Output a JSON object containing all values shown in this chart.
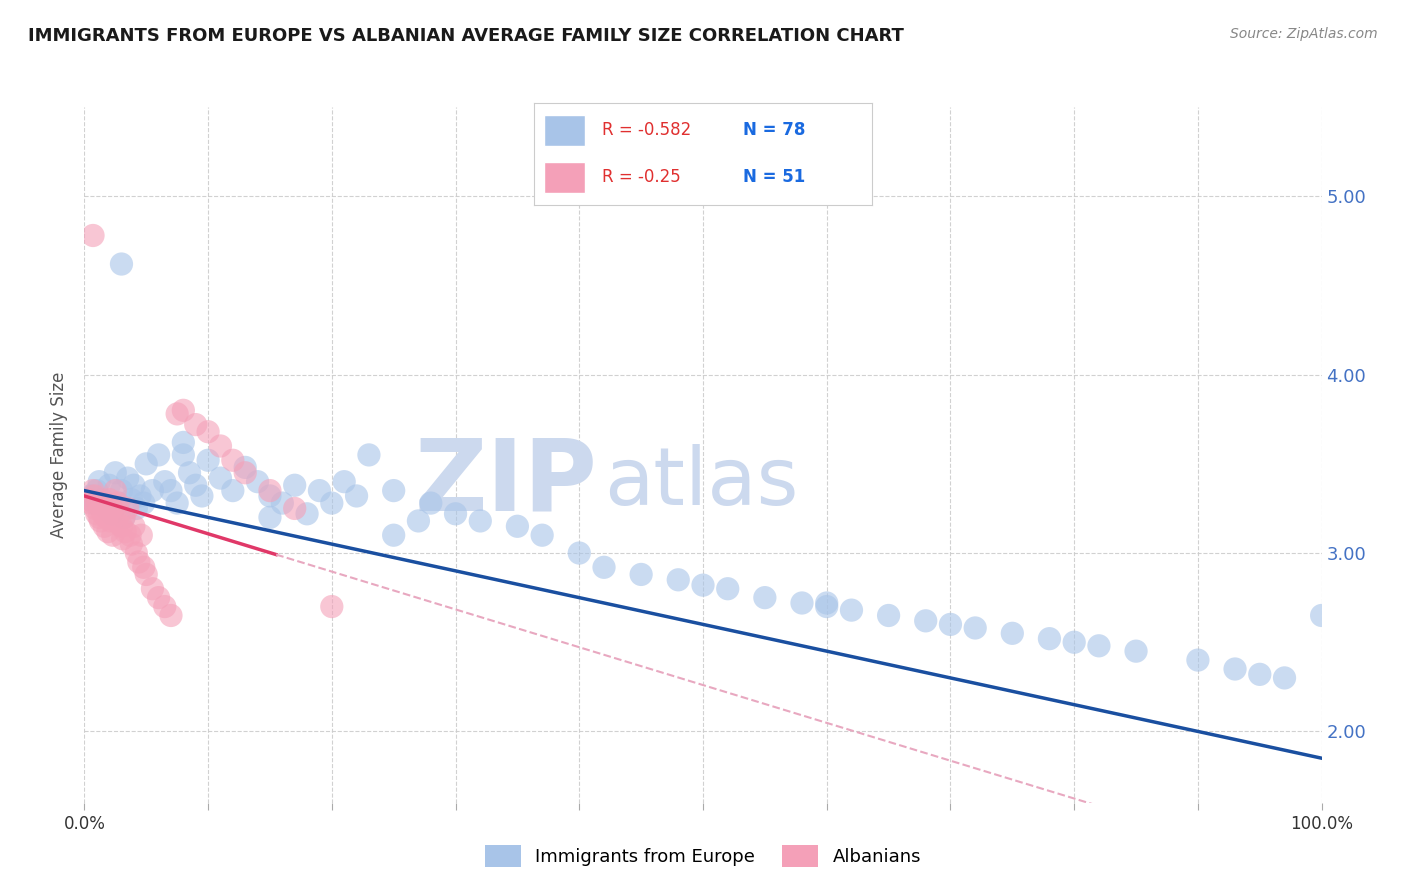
{
  "title": "IMMIGRANTS FROM EUROPE VS ALBANIAN AVERAGE FAMILY SIZE CORRELATION CHART",
  "source": "Source: ZipAtlas.com",
  "ylabel": "Average Family Size",
  "yticks": [
    2.0,
    3.0,
    4.0,
    5.0
  ],
  "xlim": [
    0,
    1.0
  ],
  "ylim": [
    1.6,
    5.5
  ],
  "blue_R": -0.582,
  "blue_N": 78,
  "pink_R": -0.25,
  "pink_N": 51,
  "blue_color": "#a8c4e8",
  "blue_line_color": "#1a4fa0",
  "pink_color": "#f4a0b8",
  "pink_line_color": "#e03868",
  "pink_dashed_color": "#e8a8c0",
  "watermark_zip": "ZIP",
  "watermark_atlas": "atlas",
  "watermark_color": "#ccd9ee",
  "background_color": "#ffffff",
  "legend_label_blue": "Immigrants from Europe",
  "legend_label_pink": "Albanians",
  "blue_scatter_x": [
    0.005,
    0.008,
    0.01,
    0.012,
    0.015,
    0.018,
    0.02,
    0.022,
    0.025,
    0.028,
    0.03,
    0.032,
    0.035,
    0.038,
    0.04,
    0.042,
    0.045,
    0.048,
    0.05,
    0.055,
    0.06,
    0.065,
    0.07,
    0.075,
    0.08,
    0.085,
    0.09,
    0.095,
    0.1,
    0.11,
    0.12,
    0.13,
    0.14,
    0.15,
    0.16,
    0.17,
    0.18,
    0.19,
    0.2,
    0.21,
    0.22,
    0.23,
    0.25,
    0.27,
    0.28,
    0.3,
    0.32,
    0.35,
    0.37,
    0.4,
    0.42,
    0.45,
    0.48,
    0.5,
    0.52,
    0.55,
    0.58,
    0.6,
    0.62,
    0.65,
    0.68,
    0.7,
    0.72,
    0.75,
    0.78,
    0.8,
    0.82,
    0.85,
    0.9,
    0.93,
    0.95,
    0.97,
    1.0,
    0.03,
    0.08,
    0.15,
    0.25,
    0.6
  ],
  "blue_scatter_y": [
    3.32,
    3.28,
    3.35,
    3.4,
    3.3,
    3.25,
    3.38,
    3.22,
    3.45,
    3.28,
    3.35,
    3.2,
    3.42,
    3.3,
    3.38,
    3.25,
    3.32,
    3.28,
    3.5,
    3.35,
    3.55,
    3.4,
    3.35,
    3.28,
    3.62,
    3.45,
    3.38,
    3.32,
    3.52,
    3.42,
    3.35,
    3.48,
    3.4,
    3.32,
    3.28,
    3.38,
    3.22,
    3.35,
    3.28,
    3.4,
    3.32,
    3.55,
    3.35,
    3.18,
    3.28,
    3.22,
    3.18,
    3.15,
    3.1,
    3.0,
    2.92,
    2.88,
    2.85,
    2.82,
    2.8,
    2.75,
    2.72,
    2.7,
    2.68,
    2.65,
    2.62,
    2.6,
    2.58,
    2.55,
    2.52,
    2.5,
    2.48,
    2.45,
    2.4,
    2.35,
    2.32,
    2.3,
    2.65,
    4.62,
    3.55,
    3.2,
    3.1,
    2.72
  ],
  "pink_scatter_x": [
    0.003,
    0.005,
    0.007,
    0.008,
    0.009,
    0.01,
    0.011,
    0.012,
    0.013,
    0.014,
    0.015,
    0.016,
    0.017,
    0.018,
    0.019,
    0.02,
    0.021,
    0.022,
    0.023,
    0.025,
    0.026,
    0.027,
    0.028,
    0.03,
    0.031,
    0.032,
    0.033,
    0.035,
    0.037,
    0.038,
    0.04,
    0.042,
    0.044,
    0.046,
    0.048,
    0.05,
    0.055,
    0.06,
    0.065,
    0.07,
    0.075,
    0.08,
    0.09,
    0.1,
    0.11,
    0.12,
    0.13,
    0.15,
    0.17,
    0.2,
    0.007
  ],
  "pink_scatter_y": [
    3.3,
    3.28,
    3.35,
    3.32,
    3.25,
    3.22,
    3.28,
    3.2,
    3.18,
    3.25,
    3.22,
    3.15,
    3.28,
    3.2,
    3.12,
    3.3,
    3.18,
    3.25,
    3.1,
    3.35,
    3.18,
    3.28,
    3.22,
    3.15,
    3.08,
    3.2,
    3.12,
    3.25,
    3.1,
    3.05,
    3.15,
    3.0,
    2.95,
    3.1,
    2.92,
    2.88,
    2.8,
    2.75,
    2.7,
    2.65,
    3.78,
    3.8,
    3.72,
    3.68,
    3.6,
    3.52,
    3.45,
    3.35,
    3.25,
    2.7,
    4.78
  ]
}
